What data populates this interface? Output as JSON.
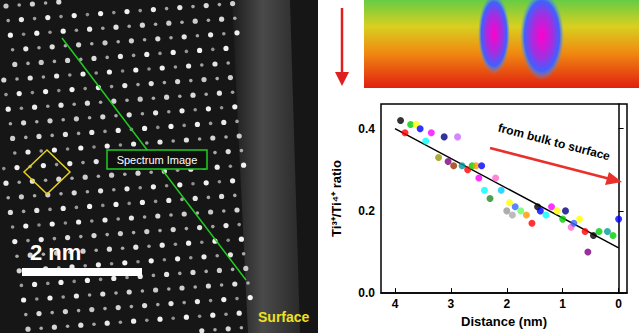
{
  "stem_image": {
    "scale_bar": "2 nm",
    "line_label": "Spectrum Image",
    "edge_label": "Surface"
  },
  "chart_data": {
    "type": "scatter",
    "xlabel": "Distance (nm)",
    "ylabel": "Ti³⁺/Ti⁴⁺ ratio",
    "xlim": [
      4.25,
      -0.15
    ],
    "xticks": [
      4,
      3,
      2,
      1,
      0
    ],
    "ylim": [
      0,
      0.46
    ],
    "yticks": [
      {
        "value": 0,
        "label": "0.0"
      },
      {
        "value": 0.2,
        "label": "0.2"
      },
      {
        "value": 0.4,
        "label": "0.4"
      }
    ],
    "grid": false,
    "annotations": [
      "from bulk to surface"
    ],
    "series": [
      {
        "type": "scatter",
        "marker": "circle",
        "x": [
          3.9,
          3.82,
          3.72,
          3.62,
          3.55,
          3.45,
          3.35,
          3.22,
          3.12,
          3.05,
          2.95,
          2.88,
          2.8,
          2.7,
          2.62,
          2.55,
          2.5,
          2.45,
          2.4,
          2.3,
          2.2,
          2.1,
          2.0,
          1.95,
          1.9,
          1.85,
          1.75,
          1.65,
          1.55,
          1.45,
          1.4,
          1.3,
          1.2,
          1.1,
          1.0,
          0.95,
          0.85,
          0.8,
          0.7,
          0.6,
          0.55,
          0.45,
          0.35,
          0.2,
          0.1,
          0.0
        ],
        "values": [
          0.42,
          0.39,
          0.41,
          0.41,
          0.4,
          0.37,
          0.39,
          0.33,
          0.38,
          0.32,
          0.31,
          0.38,
          0.31,
          0.3,
          0.31,
          0.31,
          0.28,
          0.31,
          0.25,
          0.23,
          0.28,
          0.25,
          0.2,
          0.22,
          0.19,
          0.21,
          0.2,
          0.19,
          0.17,
          0.21,
          0.2,
          0.19,
          0.21,
          0.2,
          0.18,
          0.2,
          0.16,
          0.17,
          0.18,
          0.15,
          0.1,
          0.14,
          0.15,
          0.15,
          0.14,
          0.18
        ],
        "colors": [
          "#000000",
          "#ff0000",
          "#00cc00",
          "#ffff00",
          "#0000ff",
          "#00ffff",
          "#ff00ff",
          "#999900",
          "#000080",
          "#800080",
          "#993300",
          "#cc66ff",
          "#009999",
          "#ff0000",
          "#00cc00",
          "#ff9900",
          "#ff00ff",
          "#0000ff",
          "#00ffff",
          "#228b22",
          "#ff66cc",
          "#00ccff",
          "#999999",
          "#ffff00",
          "#aaaaaa",
          "#3366ff",
          "#66ff66",
          "#ff9900",
          "#ff0000",
          "#000000",
          "#0000ff",
          "#00ffff",
          "#ff00ff",
          "#ffff00",
          "#00cc00",
          "#000080",
          "#ff66cc",
          "#3366ff",
          "#ffff00",
          "#ff0000",
          "#800080",
          "#000000",
          "#00cc00",
          "#009999",
          "#00cc00",
          "#0000ff"
        ]
      },
      {
        "type": "line",
        "color": "#000000",
        "x": [
          4.0,
          0.0
        ],
        "values": [
          0.4,
          0.11
        ]
      }
    ]
  }
}
